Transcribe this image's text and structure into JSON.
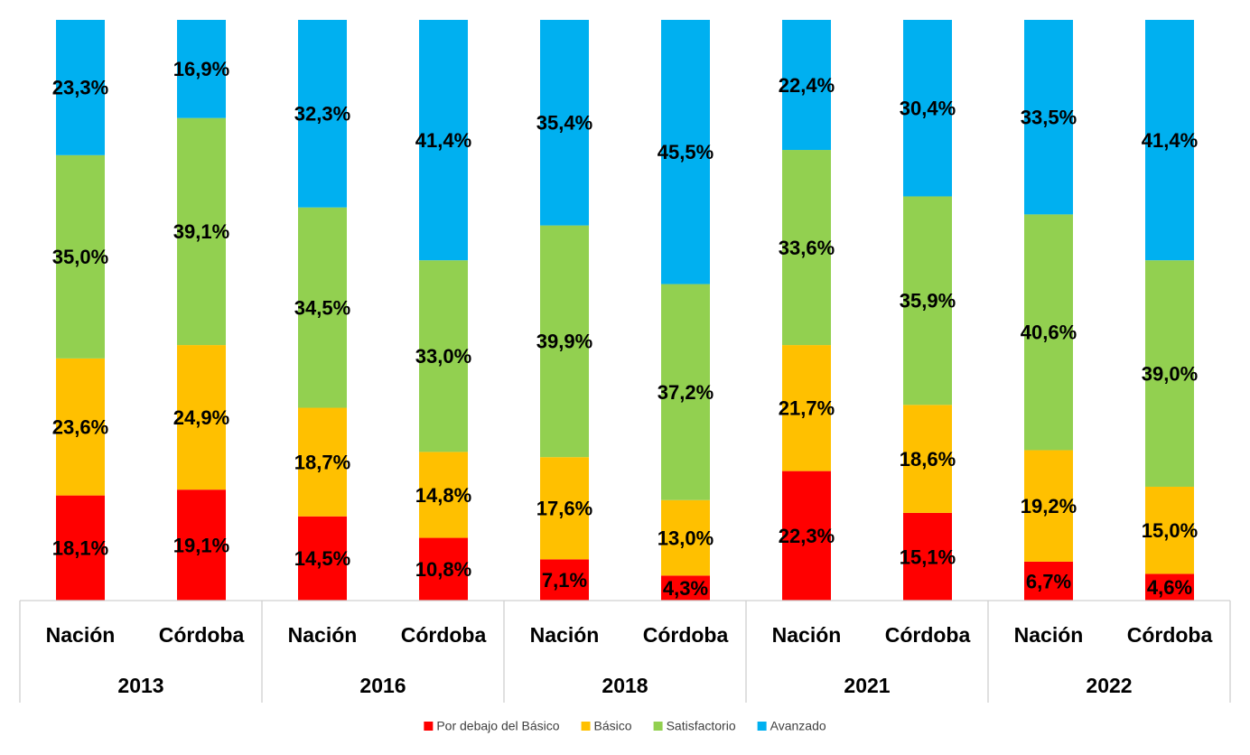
{
  "chart_data": {
    "type": "stacked_bar",
    "categories": [
      "Nación",
      "Córdoba",
      "Nación",
      "Córdoba",
      "Nación",
      "Córdoba",
      "Nación",
      "Córdoba",
      "Nación",
      "Córdoba"
    ],
    "groups": [
      "2013",
      "2016",
      "2018",
      "2021",
      "2022"
    ],
    "ylim": [
      0,
      100
    ],
    "series": [
      {
        "name": "Por debajo del Básico",
        "color": "#ff0000",
        "values": [
          18.1,
          19.1,
          14.5,
          10.8,
          7.1,
          4.3,
          22.3,
          15.1,
          6.7,
          4.6
        ],
        "value_labels": [
          "18,1%",
          "19,1%",
          "14,5%",
          "10,8%",
          "7,1%",
          "4,3%",
          "22,3%",
          "15,1%",
          "6,7%",
          "4,6%"
        ]
      },
      {
        "name": "Básico",
        "color": "#ffc000",
        "values": [
          23.6,
          24.9,
          18.7,
          14.8,
          17.6,
          13.0,
          21.7,
          18.6,
          19.2,
          15.0
        ],
        "value_labels": [
          "23,6%",
          "24,9%",
          "18,7%",
          "14,8%",
          "17,6%",
          "13,0%",
          "21,7%",
          "18,6%",
          "19,2%",
          "15,0%"
        ]
      },
      {
        "name": "Satisfactorio",
        "color": "#92d050",
        "values": [
          35.0,
          39.1,
          34.5,
          33.0,
          39.9,
          37.2,
          33.6,
          35.9,
          40.6,
          39.0
        ],
        "value_labels": [
          "35,0%",
          "39,1%",
          "34,5%",
          "33,0%",
          "39,9%",
          "37,2%",
          "33,6%",
          "35,9%",
          "40,6%",
          "39,0%"
        ]
      },
      {
        "name": "Avanzado",
        "color": "#00b0f0",
        "values": [
          23.3,
          16.9,
          32.3,
          41.4,
          35.4,
          45.5,
          22.4,
          30.4,
          33.5,
          41.4
        ],
        "value_labels": [
          "23,3%",
          "16,9%",
          "32,3%",
          "41,4%",
          "35,4%",
          "45,5%",
          "22,4%",
          "30,4%",
          "33,5%",
          "41,4%"
        ]
      }
    ],
    "legend": "bottom"
  }
}
